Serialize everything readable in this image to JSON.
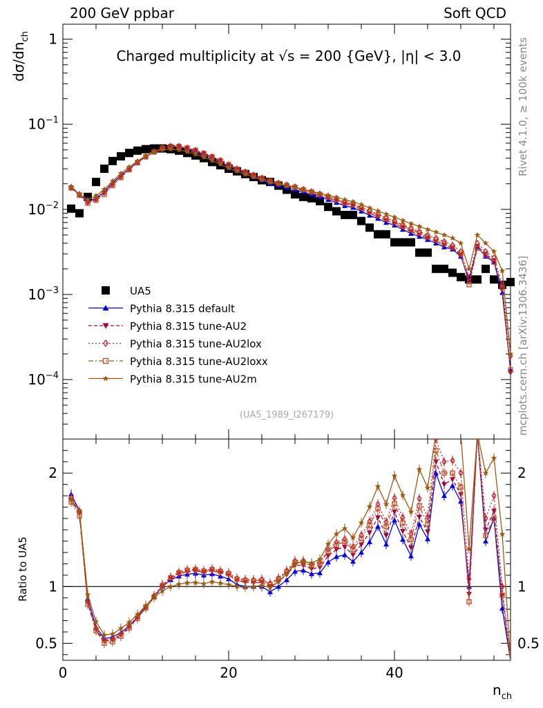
{
  "header": {
    "left": "200 GeV ppbar",
    "right": "Soft QCD"
  },
  "side_text": {
    "rivet": "Rivet 4.1.0, ≥ 100k events",
    "mcplots": "mcplots.cern.ch [arXiv:1306.3436]"
  },
  "chart_data": {
    "type": "scatter",
    "title": "Charged multiplicity at √s = 200 {GeV}, |η| < 3.0",
    "analysis_tag": "(UA5_1989_I267179)",
    "ylabel": "dσ/dn",
    "ylabel_sub": "ch",
    "xlabel": "n",
    "xlabel_sub": "ch",
    "xlim": [
      0,
      54
    ],
    "ylim": [
      2e-05,
      1.5
    ],
    "yscale": "log",
    "x_ticks": [
      "0",
      "20",
      "40"
    ],
    "y_ticks": [
      {
        "label": "1",
        "exp": ""
      },
      {
        "label": "10",
        "exp": "−1"
      },
      {
        "label": "10",
        "exp": "−2"
      },
      {
        "label": "10",
        "exp": "−3"
      },
      {
        "label": "10",
        "exp": "−4"
      }
    ],
    "ratio_ylabel": "Ratio to UA5",
    "ratio_ylim": [
      0.35,
      2.3
    ],
    "ratio_ticks": [
      "0.5",
      "1",
      "2"
    ],
    "x": [
      1,
      2,
      3,
      4,
      5,
      6,
      7,
      8,
      9,
      10,
      11,
      12,
      13,
      14,
      15,
      16,
      17,
      18,
      19,
      20,
      21,
      22,
      23,
      24,
      25,
      26,
      27,
      28,
      29,
      30,
      31,
      32,
      33,
      34,
      35,
      36,
      37,
      38,
      39,
      40,
      41,
      42,
      43,
      44,
      45,
      46,
      47,
      48,
      49,
      50,
      51,
      52,
      53,
      54
    ],
    "series": [
      {
        "name": "UA5",
        "color": "#000000",
        "marker": "square",
        "line": "none",
        "values": [
          0.0102,
          0.009,
          0.014,
          0.021,
          0.03,
          0.037,
          0.042,
          0.046,
          0.049,
          0.051,
          0.052,
          0.052,
          0.051,
          0.049,
          0.046,
          0.043,
          0.04,
          0.036,
          0.033,
          0.03,
          0.028,
          0.026,
          0.024,
          0.022,
          0.021,
          0.019,
          0.017,
          0.015,
          0.014,
          0.0135,
          0.0125,
          0.0107,
          0.0095,
          0.0086,
          0.0086,
          0.0073,
          0.0061,
          0.0051,
          0.0051,
          0.0041,
          0.0041,
          0.0041,
          0.0031,
          0.0031,
          0.002,
          0.002,
          0.0018,
          0.0016,
          0.0015,
          0.0015,
          0.002,
          0.0015,
          0.0013,
          0.0014
        ]
      },
      {
        "name": "Pythia 8.315 default",
        "color": "#0000ee",
        "marker": "triangle",
        "line": "solid",
        "values": [
          0.0185,
          0.015,
          0.0125,
          0.0135,
          0.0162,
          0.0205,
          0.025,
          0.03,
          0.036,
          0.042,
          0.0475,
          0.052,
          0.054,
          0.0535,
          0.051,
          0.048,
          0.044,
          0.04,
          0.036,
          0.032,
          0.0285,
          0.026,
          0.024,
          0.022,
          0.02,
          0.019,
          0.018,
          0.017,
          0.016,
          0.015,
          0.014,
          0.013,
          0.012,
          0.011,
          0.0105,
          0.0095,
          0.0085,
          0.0078,
          0.007,
          0.0065,
          0.0058,
          0.0052,
          0.0048,
          0.0044,
          0.004,
          0.0036,
          0.0034,
          0.0028,
          0.0015,
          0.0036,
          0.0028,
          0.0024,
          0.00105,
          0.00013
        ]
      },
      {
        "name": "Pythia 8.315 tune-AU2",
        "color": "#9b0a3c",
        "marker": "triangle-down",
        "line": "dashed",
        "values": [
          0.018,
          0.0148,
          0.012,
          0.013,
          0.0155,
          0.0195,
          0.024,
          0.0295,
          0.0355,
          0.0415,
          0.047,
          0.052,
          0.0545,
          0.0545,
          0.052,
          0.049,
          0.045,
          0.041,
          0.037,
          0.033,
          0.0295,
          0.027,
          0.0248,
          0.0228,
          0.021,
          0.0198,
          0.0188,
          0.0178,
          0.0166,
          0.0156,
          0.0146,
          0.0136,
          0.0126,
          0.0116,
          0.011,
          0.01,
          0.009,
          0.0082,
          0.0074,
          0.0068,
          0.0061,
          0.0055,
          0.005,
          0.0046,
          0.0042,
          0.0038,
          0.0035,
          0.0029,
          0.0014,
          0.0037,
          0.003,
          0.0025,
          0.0012,
          0.00012
        ]
      },
      {
        "name": "Pythia 8.315 tune-AU2lox",
        "color": "#c0202e",
        "marker": "diamond",
        "line": "dotted",
        "values": [
          0.0182,
          0.015,
          0.0122,
          0.0132,
          0.0158,
          0.0198,
          0.0244,
          0.03,
          0.036,
          0.042,
          0.0478,
          0.0528,
          0.0552,
          0.0552,
          0.0528,
          0.0496,
          0.0456,
          0.0416,
          0.0376,
          0.0336,
          0.03,
          0.0276,
          0.0254,
          0.0234,
          0.0216,
          0.0204,
          0.0194,
          0.0184,
          0.0172,
          0.0162,
          0.0152,
          0.0142,
          0.0132,
          0.0122,
          0.0116,
          0.0106,
          0.0096,
          0.0088,
          0.008,
          0.0073,
          0.0066,
          0.006,
          0.0055,
          0.005,
          0.0046,
          0.0042,
          0.0038,
          0.0032,
          0.0016,
          0.004,
          0.0032,
          0.0027,
          0.0013,
          0.00019
        ]
      },
      {
        "name": "Pythia 8.315 tune-AU2loxx",
        "color": "#c8461e",
        "marker": "open-square",
        "line": "dashdot",
        "values": [
          0.0178,
          0.0146,
          0.0118,
          0.0128,
          0.015,
          0.019,
          0.0236,
          0.0292,
          0.0352,
          0.0414,
          0.0472,
          0.0524,
          0.055,
          0.055,
          0.0526,
          0.0494,
          0.0454,
          0.0414,
          0.0374,
          0.0334,
          0.0298,
          0.0274,
          0.0252,
          0.0232,
          0.0214,
          0.0202,
          0.0192,
          0.0182,
          0.017,
          0.016,
          0.015,
          0.014,
          0.013,
          0.012,
          0.0114,
          0.0104,
          0.0094,
          0.0086,
          0.0078,
          0.0071,
          0.0064,
          0.0058,
          0.0053,
          0.0048,
          0.0044,
          0.004,
          0.0036,
          0.003,
          0.0013,
          0.0035,
          0.0029,
          0.0024,
          0.0012,
          0.00013
        ]
      },
      {
        "name": "Pythia 8.315 tune-AU2m",
        "color": "#a05a10",
        "marker": "star",
        "line": "solid",
        "values": [
          0.018,
          0.015,
          0.013,
          0.0145,
          0.0172,
          0.0215,
          0.0265,
          0.0315,
          0.037,
          0.0425,
          0.047,
          0.05,
          0.051,
          0.05,
          0.0475,
          0.0445,
          0.041,
          0.0375,
          0.034,
          0.0305,
          0.028,
          0.0258,
          0.024,
          0.0222,
          0.0208,
          0.0198,
          0.0189,
          0.018,
          0.0171,
          0.0163,
          0.0155,
          0.0147,
          0.0139,
          0.013,
          0.0123,
          0.0114,
          0.0104,
          0.0096,
          0.0088,
          0.0081,
          0.0074,
          0.0068,
          0.0063,
          0.0058,
          0.0054,
          0.005,
          0.0046,
          0.004,
          0.002,
          0.005,
          0.004,
          0.0032,
          0.0019,
          0.0002
        ]
      }
    ]
  }
}
